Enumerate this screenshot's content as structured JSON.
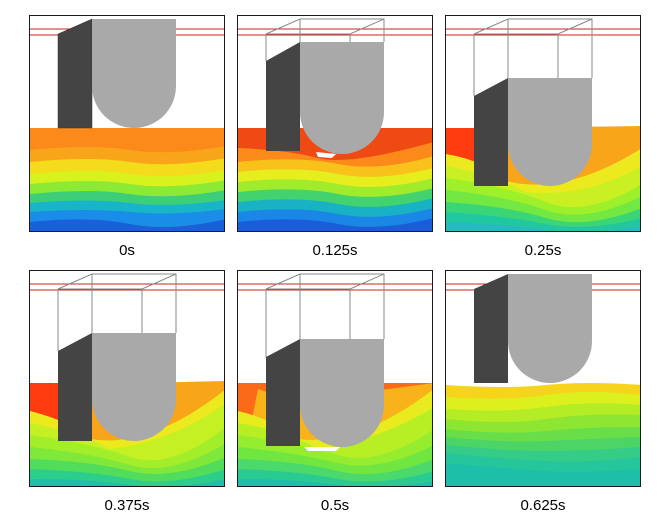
{
  "panels": [
    {
      "caption": "0s",
      "colors": [
        "#fb8a1a",
        "#f9a51a",
        "#f4dc1c",
        "#d8f21e",
        "#8cea35",
        "#3ccf78",
        "#18b5c8",
        "#1a8de8",
        "#1a5fdc"
      ]
    },
    {
      "caption": "0.125s",
      "colors": [
        "#f04a14",
        "#fb8a1a",
        "#f9c21b",
        "#e6ee1e",
        "#a0ec2c",
        "#42d26e",
        "#18b2c4",
        "#1a86e6",
        "#1a5cdc"
      ]
    },
    {
      "caption": "0.25s",
      "colors": [
        "#ff3c10",
        "#f9a51a",
        "#ecea1e",
        "#c8f022",
        "#9ef02a",
        "#74e842",
        "#3ad576",
        "#1fc8a0",
        "#22bcc0"
      ]
    },
    {
      "caption": "0.375s",
      "colors": [
        "#ff3c10",
        "#f9a51a",
        "#ecea1e",
        "#c4f024",
        "#a2ee2a",
        "#80e83a",
        "#52dc5c",
        "#2cce8c",
        "#1ec0a8"
      ]
    },
    {
      "caption": "0.5s",
      "colors": [
        "#fb6a18",
        "#f9b31a",
        "#e8ec1e",
        "#b8ef24",
        "#96ec2e",
        "#72e640",
        "#4ad96a",
        "#2acb92",
        "#1ebfa8"
      ]
    },
    {
      "caption": "0.625s",
      "colors": [
        "#f6d41c",
        "#dcf01e",
        "#b4ec26",
        "#8ee632",
        "#6ade48",
        "#4cd466",
        "#34cc86",
        "#26c69c",
        "#1ebfa8"
      ]
    }
  ]
}
